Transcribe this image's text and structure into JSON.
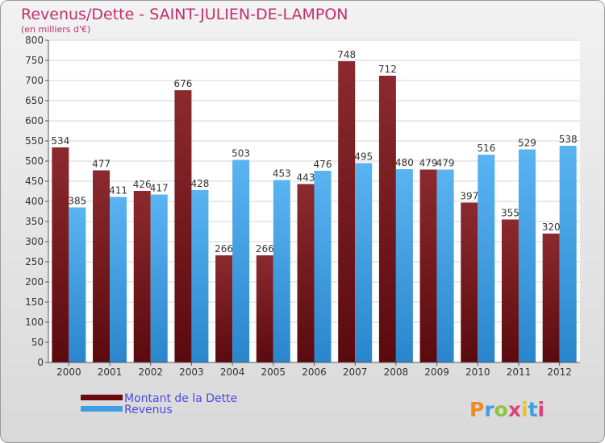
{
  "chart_data": {
    "type": "bar",
    "title": "Revenus/Dette - SAINT-JULIEN-DE-LAMPON",
    "subtitle": "(en milliers d'€)",
    "categories": [
      "2000",
      "2001",
      "2002",
      "2003",
      "2004",
      "2005",
      "2006",
      "2007",
      "2008",
      "2009",
      "2010",
      "2011",
      "2012"
    ],
    "series": [
      {
        "name": "Montant de la Dette",
        "values": [
          534,
          477,
          426,
          676,
          266,
          266,
          443,
          748,
          712,
          479,
          397,
          355,
          320
        ],
        "color": "#7a1a1e"
      },
      {
        "name": "Revenus",
        "values": [
          385,
          411,
          417,
          428,
          503,
          453,
          476,
          495,
          480,
          479,
          516,
          529,
          538
        ],
        "color": "#3d9ee6"
      }
    ],
    "ylim": [
      0,
      800
    ],
    "yticks": [
      0,
      50,
      100,
      150,
      200,
      250,
      300,
      350,
      400,
      450,
      500,
      550,
      600,
      650,
      700,
      750,
      800
    ],
    "grid": true,
    "legend_position": "bottom-left",
    "logo_text": "Proxiti"
  }
}
